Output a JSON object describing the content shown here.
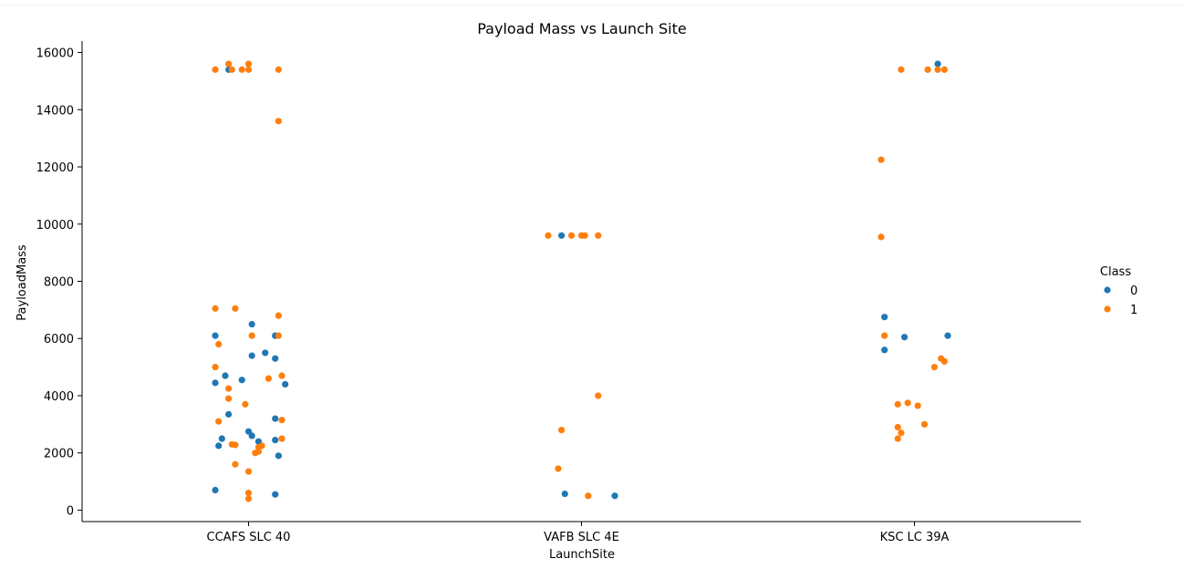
{
  "chart_data": {
    "type": "scatter",
    "title": "Payload Mass vs Launch Site",
    "xlabel": "LaunchSite",
    "ylabel": "PayloadMass",
    "categories": [
      "CCAFS SLC 40",
      "VAFB SLC 4E",
      "KSC LC 39A"
    ],
    "ylim": [
      -400,
      16400
    ],
    "yticks": [
      0,
      2000,
      4000,
      6000,
      8000,
      10000,
      12000,
      14000,
      16000
    ],
    "grid": false,
    "legend": {
      "title": "Class",
      "placement": "right",
      "entries": [
        "0",
        "1"
      ]
    },
    "colors": {
      "0": "#1f77b4",
      "1": "#ff7f0e"
    },
    "series": [
      {
        "name": "0",
        "points": [
          {
            "site": "CCAFS SLC 40",
            "jitter": -0.06,
            "y": 15400
          },
          {
            "site": "CCAFS SLC 40",
            "jitter": -0.1,
            "y": 6100
          },
          {
            "site": "CCAFS SLC 40",
            "jitter": 0.01,
            "y": 6500
          },
          {
            "site": "CCAFS SLC 40",
            "jitter": 0.08,
            "y": 6100
          },
          {
            "site": "CCAFS SLC 40",
            "jitter": 0.05,
            "y": 5500
          },
          {
            "site": "CCAFS SLC 40",
            "jitter": 0.01,
            "y": 5400
          },
          {
            "site": "CCAFS SLC 40",
            "jitter": 0.08,
            "y": 5300
          },
          {
            "site": "CCAFS SLC 40",
            "jitter": -0.07,
            "y": 4700
          },
          {
            "site": "CCAFS SLC 40",
            "jitter": -0.02,
            "y": 4550
          },
          {
            "site": "CCAFS SLC 40",
            "jitter": -0.1,
            "y": 4450
          },
          {
            "site": "CCAFS SLC 40",
            "jitter": 0.11,
            "y": 4400
          },
          {
            "site": "CCAFS SLC 40",
            "jitter": -0.06,
            "y": 3350
          },
          {
            "site": "CCAFS SLC 40",
            "jitter": 0.08,
            "y": 3200
          },
          {
            "site": "CCAFS SLC 40",
            "jitter": 0.0,
            "y": 2750
          },
          {
            "site": "CCAFS SLC 40",
            "jitter": 0.01,
            "y": 2600
          },
          {
            "site": "CCAFS SLC 40",
            "jitter": -0.08,
            "y": 2500
          },
          {
            "site": "CCAFS SLC 40",
            "jitter": 0.03,
            "y": 2400
          },
          {
            "site": "CCAFS SLC 40",
            "jitter": 0.08,
            "y": 2450
          },
          {
            "site": "CCAFS SLC 40",
            "jitter": -0.09,
            "y": 2250
          },
          {
            "site": "CCAFS SLC 40",
            "jitter": 0.09,
            "y": 1900
          },
          {
            "site": "CCAFS SLC 40",
            "jitter": -0.1,
            "y": 700
          },
          {
            "site": "CCAFS SLC 40",
            "jitter": 0.08,
            "y": 550
          },
          {
            "site": "VAFB SLC 4E",
            "jitter": -0.06,
            "y": 9600
          },
          {
            "site": "VAFB SLC 4E",
            "jitter": -0.05,
            "y": 570
          },
          {
            "site": "VAFB SLC 4E",
            "jitter": 0.1,
            "y": 500
          },
          {
            "site": "KSC LC 39A",
            "jitter": 0.07,
            "y": 15600
          },
          {
            "site": "KSC LC 39A",
            "jitter": -0.09,
            "y": 6750
          },
          {
            "site": "KSC LC 39A",
            "jitter": 0.1,
            "y": 6100
          },
          {
            "site": "KSC LC 39A",
            "jitter": -0.03,
            "y": 6050
          },
          {
            "site": "KSC LC 39A",
            "jitter": -0.09,
            "y": 5600
          }
        ]
      },
      {
        "name": "1",
        "points": [
          {
            "site": "CCAFS SLC 40",
            "jitter": -0.1,
            "y": 15400
          },
          {
            "site": "CCAFS SLC 40",
            "jitter": -0.06,
            "y": 15600
          },
          {
            "site": "CCAFS SLC 40",
            "jitter": -0.05,
            "y": 15400
          },
          {
            "site": "CCAFS SLC 40",
            "jitter": -0.02,
            "y": 15400
          },
          {
            "site": "CCAFS SLC 40",
            "jitter": 0.0,
            "y": 15400
          },
          {
            "site": "CCAFS SLC 40",
            "jitter": 0.0,
            "y": 15600
          },
          {
            "site": "CCAFS SLC 40",
            "jitter": 0.09,
            "y": 15400
          },
          {
            "site": "CCAFS SLC 40",
            "jitter": 0.09,
            "y": 13600
          },
          {
            "site": "CCAFS SLC 40",
            "jitter": -0.1,
            "y": 7050
          },
          {
            "site": "CCAFS SLC 40",
            "jitter": -0.04,
            "y": 7050
          },
          {
            "site": "CCAFS SLC 40",
            "jitter": 0.09,
            "y": 6800
          },
          {
            "site": "CCAFS SLC 40",
            "jitter": 0.01,
            "y": 6100
          },
          {
            "site": "CCAFS SLC 40",
            "jitter": 0.09,
            "y": 6100
          },
          {
            "site": "CCAFS SLC 40",
            "jitter": -0.09,
            "y": 5800
          },
          {
            "site": "CCAFS SLC 40",
            "jitter": -0.1,
            "y": 5000
          },
          {
            "site": "CCAFS SLC 40",
            "jitter": 0.06,
            "y": 4600
          },
          {
            "site": "CCAFS SLC 40",
            "jitter": 0.1,
            "y": 4700
          },
          {
            "site": "CCAFS SLC 40",
            "jitter": -0.06,
            "y": 4250
          },
          {
            "site": "CCAFS SLC 40",
            "jitter": -0.06,
            "y": 3900
          },
          {
            "site": "CCAFS SLC 40",
            "jitter": -0.01,
            "y": 3700
          },
          {
            "site": "CCAFS SLC 40",
            "jitter": -0.09,
            "y": 3100
          },
          {
            "site": "CCAFS SLC 40",
            "jitter": 0.1,
            "y": 3150
          },
          {
            "site": "CCAFS SLC 40",
            "jitter": 0.1,
            "y": 2500
          },
          {
            "site": "CCAFS SLC 40",
            "jitter": -0.05,
            "y": 2300
          },
          {
            "site": "CCAFS SLC 40",
            "jitter": -0.04,
            "y": 2280
          },
          {
            "site": "CCAFS SLC 40",
            "jitter": 0.03,
            "y": 2200
          },
          {
            "site": "CCAFS SLC 40",
            "jitter": 0.04,
            "y": 2250
          },
          {
            "site": "CCAFS SLC 40",
            "jitter": 0.02,
            "y": 2000
          },
          {
            "site": "CCAFS SLC 40",
            "jitter": 0.03,
            "y": 2050
          },
          {
            "site": "CCAFS SLC 40",
            "jitter": -0.04,
            "y": 1600
          },
          {
            "site": "CCAFS SLC 40",
            "jitter": 0.0,
            "y": 1350
          },
          {
            "site": "CCAFS SLC 40",
            "jitter": 0.0,
            "y": 600
          },
          {
            "site": "CCAFS SLC 40",
            "jitter": 0.0,
            "y": 400
          },
          {
            "site": "VAFB SLC 4E",
            "jitter": -0.1,
            "y": 9600
          },
          {
            "site": "VAFB SLC 4E",
            "jitter": -0.03,
            "y": 9600
          },
          {
            "site": "VAFB SLC 4E",
            "jitter": 0.0,
            "y": 9600
          },
          {
            "site": "VAFB SLC 4E",
            "jitter": 0.01,
            "y": 9600
          },
          {
            "site": "VAFB SLC 4E",
            "jitter": 0.05,
            "y": 9600
          },
          {
            "site": "VAFB SLC 4E",
            "jitter": 0.05,
            "y": 4000
          },
          {
            "site": "VAFB SLC 4E",
            "jitter": -0.06,
            "y": 2800
          },
          {
            "site": "VAFB SLC 4E",
            "jitter": -0.07,
            "y": 1450
          },
          {
            "site": "VAFB SLC 4E",
            "jitter": 0.02,
            "y": 500
          },
          {
            "site": "KSC LC 39A",
            "jitter": -0.1,
            "y": 12250
          },
          {
            "site": "KSC LC 39A",
            "jitter": -0.04,
            "y": 15400
          },
          {
            "site": "KSC LC 39A",
            "jitter": 0.04,
            "y": 15400
          },
          {
            "site": "KSC LC 39A",
            "jitter": 0.07,
            "y": 15400
          },
          {
            "site": "KSC LC 39A",
            "jitter": 0.09,
            "y": 15400
          },
          {
            "site": "KSC LC 39A",
            "jitter": -0.1,
            "y": 9550
          },
          {
            "site": "KSC LC 39A",
            "jitter": -0.09,
            "y": 6100
          },
          {
            "site": "KSC LC 39A",
            "jitter": 0.08,
            "y": 5300
          },
          {
            "site": "KSC LC 39A",
            "jitter": 0.09,
            "y": 5200
          },
          {
            "site": "KSC LC 39A",
            "jitter": 0.06,
            "y": 5000
          },
          {
            "site": "KSC LC 39A",
            "jitter": -0.05,
            "y": 3700
          },
          {
            "site": "KSC LC 39A",
            "jitter": -0.02,
            "y": 3750
          },
          {
            "site": "KSC LC 39A",
            "jitter": 0.01,
            "y": 3650
          },
          {
            "site": "KSC LC 39A",
            "jitter": 0.03,
            "y": 3000
          },
          {
            "site": "KSC LC 39A",
            "jitter": -0.05,
            "y": 2900
          },
          {
            "site": "KSC LC 39A",
            "jitter": -0.04,
            "y": 2700
          },
          {
            "site": "KSC LC 39A",
            "jitter": -0.05,
            "y": 2500
          }
        ]
      }
    ]
  }
}
